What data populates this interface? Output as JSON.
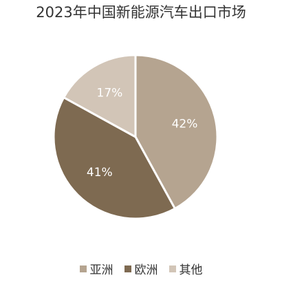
{
  "chart_data": {
    "type": "pie",
    "title": "2023年中国新能源汽车出口市场",
    "slices": [
      {
        "name": "亚洲",
        "value": 42,
        "label": "42%",
        "color": "#b5a490"
      },
      {
        "name": "欧洲",
        "value": 41,
        "label": "41%",
        "color": "#7e6a51"
      },
      {
        "name": "其他",
        "value": 17,
        "label": "17%",
        "color": "#d2c5b7"
      }
    ],
    "legend_position": "bottom",
    "start_angle": "12 o'clock",
    "direction": "clockwise"
  }
}
